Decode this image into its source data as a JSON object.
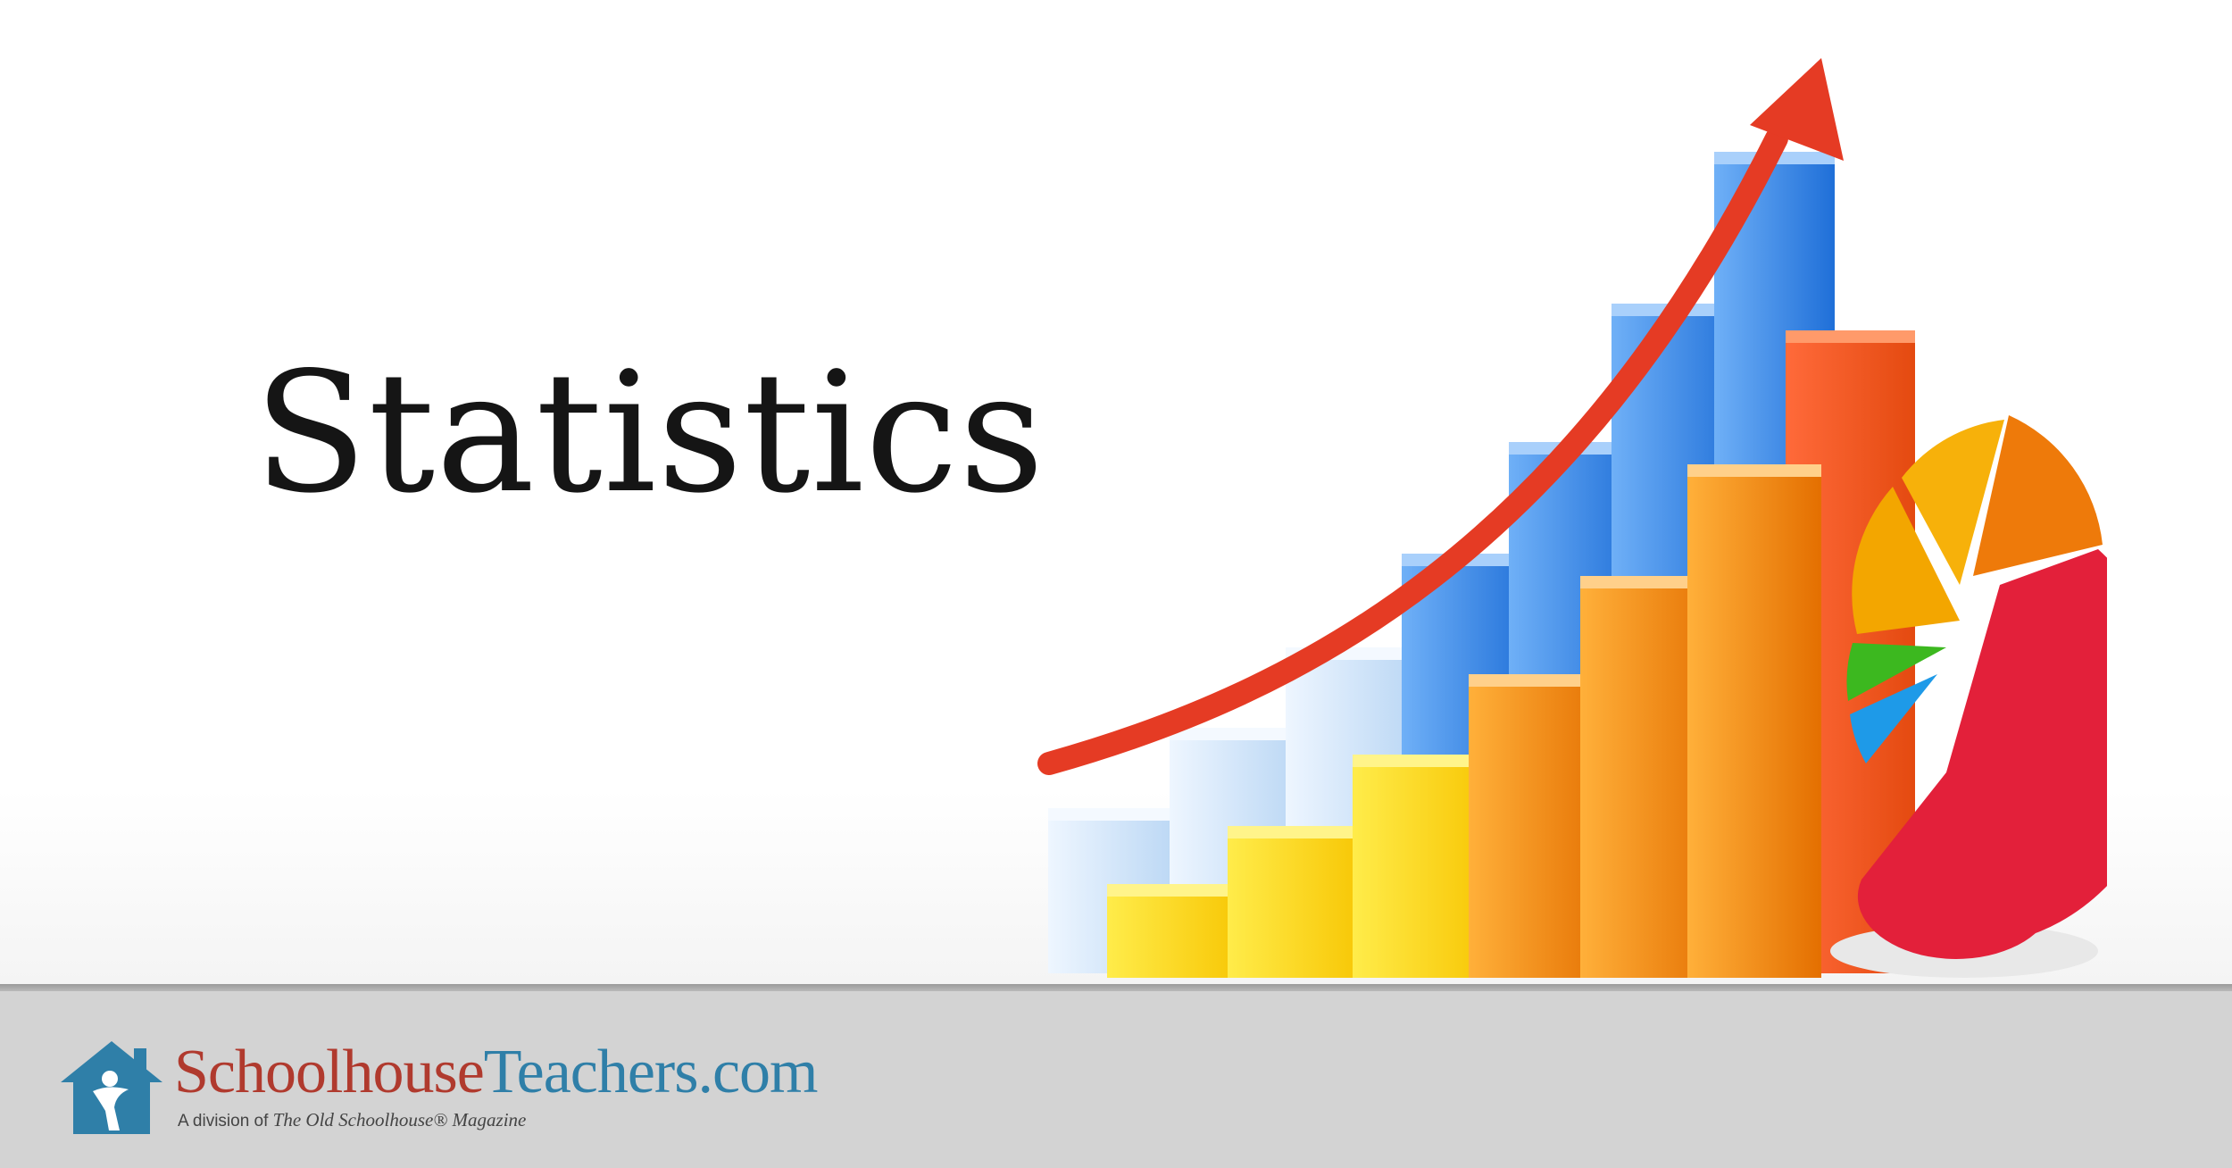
{
  "hero": {
    "title": "Statistics",
    "artwork": {
      "icons": [
        "growth-arrow-icon",
        "bar-chart-icon",
        "pie-chart-icon"
      ],
      "colors": {
        "arrow": "#e53b24",
        "light_blue": "#cfe4f8",
        "blue": "#2a7ee6",
        "yellow": "#ffd600",
        "orange": "#f08a0b",
        "red": "#e3203a",
        "green": "#3cb81f"
      }
    }
  },
  "footer": {
    "background": "#d3d3d3",
    "logo": {
      "icon": "schoolhouse-icon",
      "name_part1": "Schoolhouse",
      "name_part2": "Teachers.com",
      "subtitle_prefix": "A division of ",
      "subtitle_magazine": "The Old Schoolhouse® Magazine"
    }
  }
}
